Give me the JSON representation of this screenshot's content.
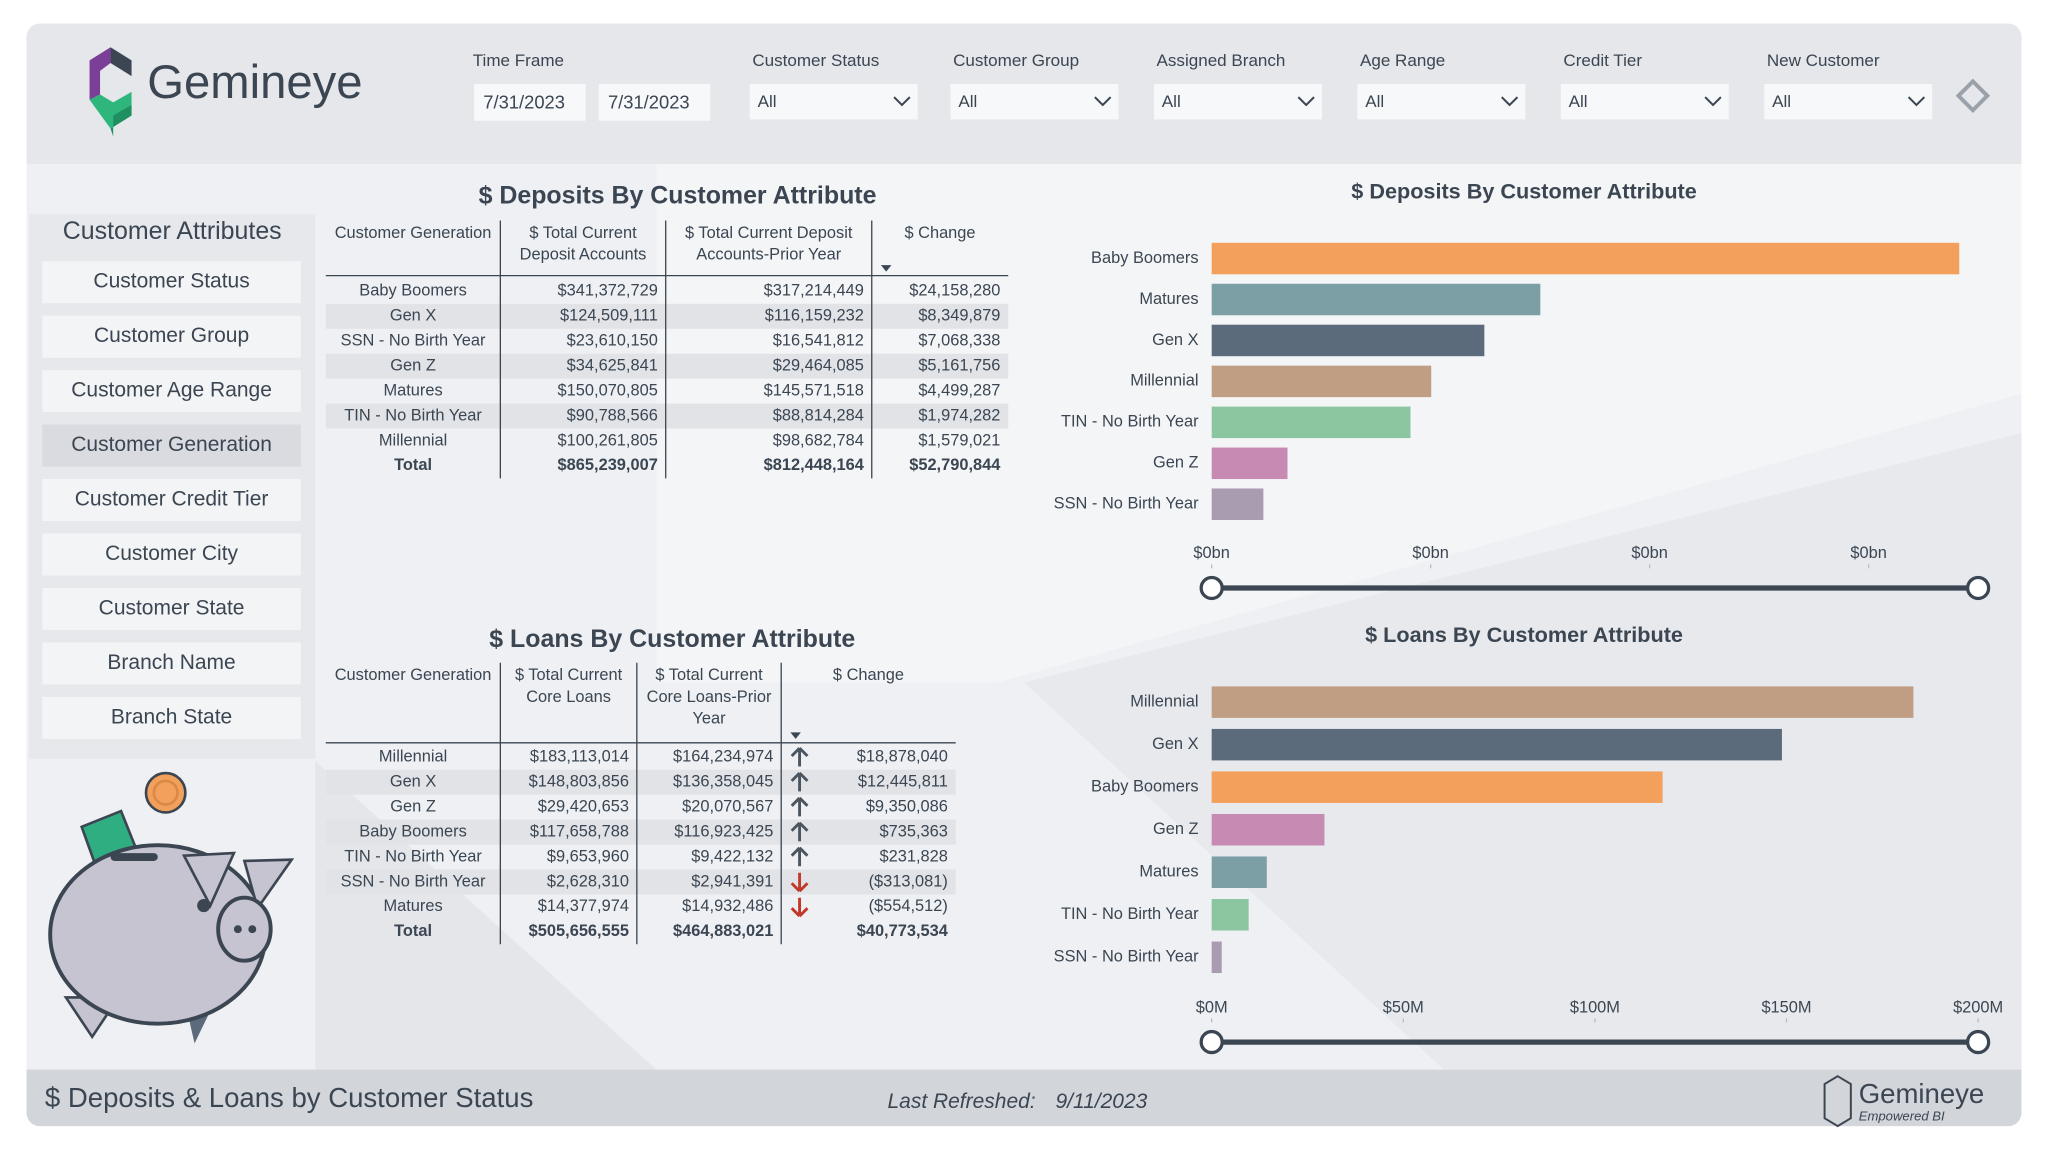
{
  "header": {
    "logo": "Gemineye",
    "time_frame": {
      "label": "Time Frame",
      "start": "7/31/2023",
      "end": "7/31/2023"
    },
    "filters": [
      {
        "label": "Customer Status",
        "value": "All"
      },
      {
        "label": "Customer Group",
        "value": "All"
      },
      {
        "label": "Assigned Branch",
        "value": "All"
      },
      {
        "label": "Age Range",
        "value": "All"
      },
      {
        "label": "Credit Tier",
        "value": "All"
      },
      {
        "label": "New Customer",
        "value": "All"
      }
    ]
  },
  "sidebar": {
    "title": "Customer Attributes",
    "items": [
      "Customer Status",
      "Customer Group",
      "Customer Age Range",
      "Customer Generation",
      "Customer Credit Tier",
      "Customer City",
      "Customer State",
      "Branch Name",
      "Branch State"
    ],
    "selected": 3
  },
  "deposits_table": {
    "title": "$ Deposits By Customer Attribute",
    "columns": [
      [
        "Customer Generation"
      ],
      [
        "$ Total Current",
        "Deposit Accounts"
      ],
      [
        "$ Total Current Deposit",
        "Accounts-Prior Year"
      ],
      [
        "$ Change"
      ]
    ],
    "rows": [
      [
        "Baby Boomers",
        "$341,372,729",
        "$317,214,449",
        "$24,158,280"
      ],
      [
        "Gen X",
        "$124,509,111",
        "$116,159,232",
        "$8,349,879"
      ],
      [
        "SSN - No Birth Year",
        "$23,610,150",
        "$16,541,812",
        "$7,068,338"
      ],
      [
        "Gen Z",
        "$34,625,841",
        "$29,464,085",
        "$5,161,756"
      ],
      [
        "Matures",
        "$150,070,805",
        "$145,571,518",
        "$4,499,287"
      ],
      [
        "TIN - No Birth Year",
        "$90,788,566",
        "$88,814,284",
        "$1,974,282"
      ],
      [
        "Millennial",
        "$100,261,805",
        "$98,682,784",
        "$1,579,021"
      ]
    ],
    "total": [
      "Total",
      "$865,239,007",
      "$812,448,164",
      "$52,790,844"
    ]
  },
  "loans_table": {
    "title": "$ Loans By Customer Attribute",
    "columns": [
      [
        "Customer Generation"
      ],
      [
        "$ Total Current",
        "Core Loans"
      ],
      [
        "$ Total Current",
        "Core Loans-Prior",
        "Year"
      ],
      [
        "$ Change"
      ]
    ],
    "rows": [
      [
        "Millennial",
        "$183,113,014",
        "$164,234,974",
        "$18,878,040"
      ],
      [
        "Gen X",
        "$148,803,856",
        "$136,358,045",
        "$12,445,811"
      ],
      [
        "Gen Z",
        "$29,420,653",
        "$20,070,567",
        "$9,350,086"
      ],
      [
        "Baby Boomers",
        "$117,658,788",
        "$116,923,425",
        "$735,363"
      ],
      [
        "TIN - No Birth Year",
        "$9,653,960",
        "$9,422,132",
        "$231,828"
      ],
      [
        "SSN - No Birth Year",
        "$2,628,310",
        "$2,941,391",
        "($313,081)"
      ],
      [
        "Matures",
        "$14,377,974",
        "$14,932,486",
        "($554,512)"
      ]
    ],
    "trends": [
      "up",
      "up",
      "up",
      "up",
      "up",
      "down",
      "down"
    ],
    "total": [
      "Total",
      "$505,656,555",
      "$464,883,021",
      "$40,773,534"
    ]
  },
  "chart_data": [
    {
      "type": "bar",
      "orientation": "horizontal",
      "title": "$ Deposits By Customer Attribute",
      "categories": [
        "Baby Boomers",
        "Matures",
        "Gen X",
        "Millennial",
        "TIN - No Birth Year",
        "Gen Z",
        "SSN - No Birth Year"
      ],
      "values": [
        341372729,
        150070805,
        124509111,
        100261805,
        90788566,
        34625841,
        23610150
      ],
      "colors": [
        "#f2a05c",
        "#7c9ea5",
        "#5b6b7b",
        "#bf9e84",
        "#8cc6a1",
        "#c78ab3",
        "#a99bb0"
      ],
      "xlim": [
        0,
        350000000
      ],
      "xticks": [
        {
          "value": 0,
          "label": "$0bn"
        },
        {
          "value": 100000000,
          "label": "$0bn"
        },
        {
          "value": 200000000,
          "label": "$0bn"
        },
        {
          "value": 300000000,
          "label": "$0bn"
        }
      ]
    },
    {
      "type": "bar",
      "orientation": "horizontal",
      "title": "$ Loans By Customer Attribute",
      "categories": [
        "Millennial",
        "Gen X",
        "Baby Boomers",
        "Gen Z",
        "Matures",
        "TIN - No Birth Year",
        "SSN - No Birth Year"
      ],
      "values": [
        183113014,
        148803856,
        117658788,
        29420653,
        14377974,
        9653960,
        2628310
      ],
      "colors": [
        "#bf9e84",
        "#5b6b7b",
        "#f2a05c",
        "#c78ab3",
        "#7c9ea5",
        "#8cc6a1",
        "#a99bb0"
      ],
      "xlim": [
        0,
        200000000
      ],
      "xticks": [
        {
          "value": 0,
          "label": "$0M"
        },
        {
          "value": 50000000,
          "label": "$50M"
        },
        {
          "value": 100000000,
          "label": "$100M"
        },
        {
          "value": 150000000,
          "label": "$150M"
        },
        {
          "value": 200000000,
          "label": "$200M"
        }
      ]
    }
  ],
  "footer": {
    "title": "$ Deposits & Loans by Customer Status",
    "refreshed_label": "Last Refreshed:",
    "refreshed_date": "9/11/2023",
    "logo": "Gemineye",
    "tagline": "Empowered BI"
  }
}
